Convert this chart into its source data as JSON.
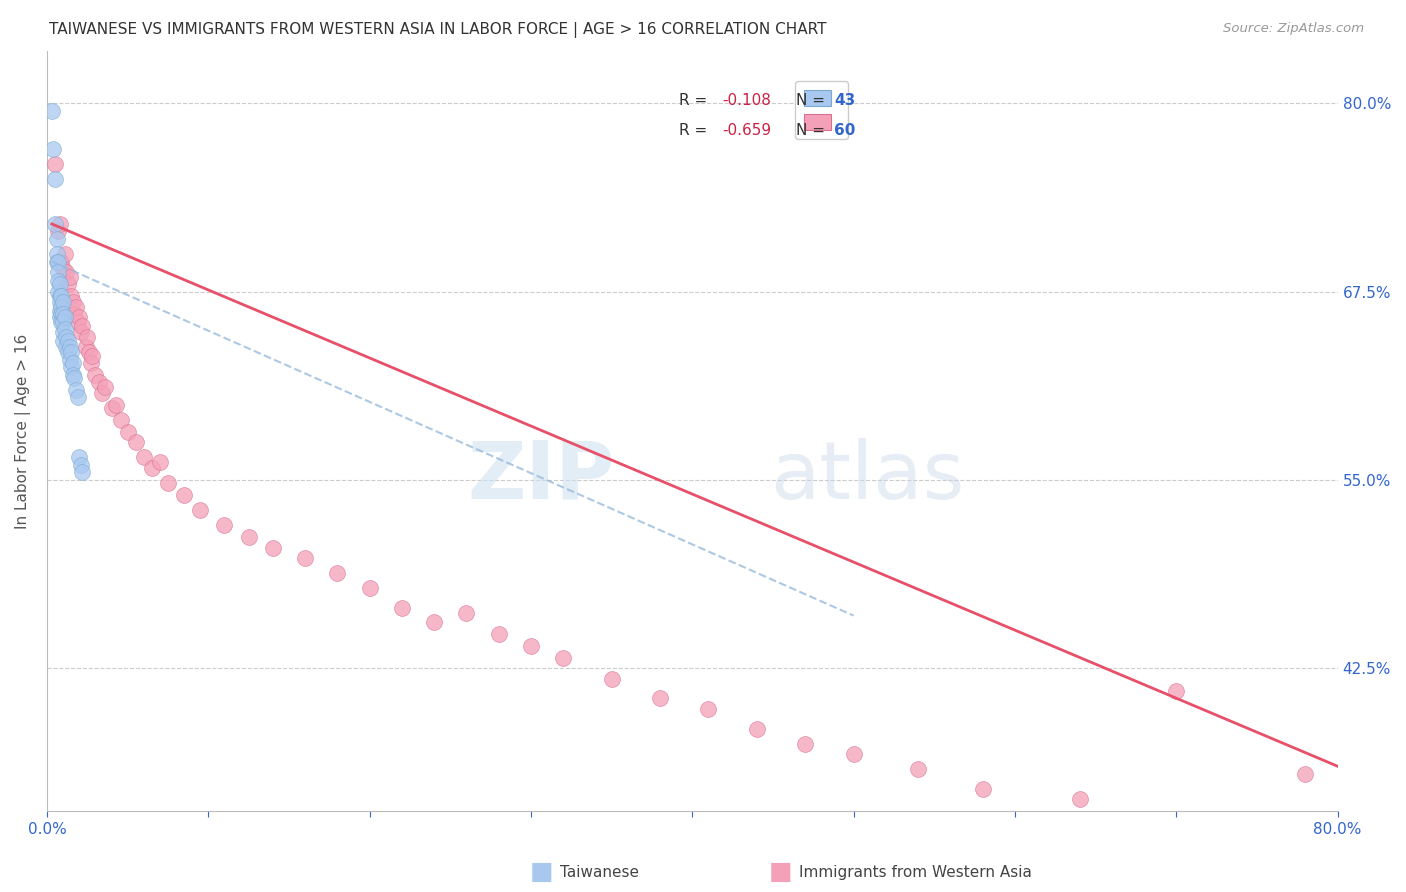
{
  "title": "TAIWANESE VS IMMIGRANTS FROM WESTERN ASIA IN LABOR FORCE | AGE > 16 CORRELATION CHART",
  "source": "Source: ZipAtlas.com",
  "ylabel": "In Labor Force | Age > 16",
  "xlim": [
    0.0,
    0.8
  ],
  "ylim": [
    0.33,
    0.835
  ],
  "ytick_positions": [
    0.425,
    0.55,
    0.675,
    0.8
  ],
  "ytick_labels": [
    "42.5%",
    "55.0%",
    "67.5%",
    "80.0%"
  ],
  "taiwanese_color": "#a8c8f0",
  "taiwanese_edge": "#7aaad0",
  "western_asia_color": "#f4a0b8",
  "western_asia_edge": "#d87090",
  "trend_blue_color": "#99bbdd",
  "trend_pink_color": "#e8506a",
  "tw_x": [
    0.003,
    0.004,
    0.005,
    0.005,
    0.006,
    0.006,
    0.006,
    0.007,
    0.007,
    0.007,
    0.007,
    0.008,
    0.008,
    0.008,
    0.008,
    0.008,
    0.009,
    0.009,
    0.009,
    0.009,
    0.01,
    0.01,
    0.01,
    0.01,
    0.01,
    0.011,
    0.011,
    0.012,
    0.012,
    0.013,
    0.013,
    0.014,
    0.014,
    0.015,
    0.015,
    0.016,
    0.016,
    0.017,
    0.018,
    0.019,
    0.02,
    0.021,
    0.022
  ],
  "tw_y": [
    0.795,
    0.77,
    0.75,
    0.72,
    0.71,
    0.7,
    0.695,
    0.695,
    0.688,
    0.682,
    0.675,
    0.68,
    0.672,
    0.668,
    0.662,
    0.658,
    0.672,
    0.665,
    0.66,
    0.655,
    0.668,
    0.66,
    0.655,
    0.648,
    0.642,
    0.658,
    0.65,
    0.645,
    0.638,
    0.642,
    0.635,
    0.638,
    0.63,
    0.635,
    0.625,
    0.628,
    0.62,
    0.618,
    0.61,
    0.605,
    0.565,
    0.56,
    0.555
  ],
  "wa_x": [
    0.005,
    0.007,
    0.008,
    0.009,
    0.01,
    0.011,
    0.012,
    0.013,
    0.014,
    0.015,
    0.016,
    0.017,
    0.018,
    0.019,
    0.02,
    0.021,
    0.022,
    0.024,
    0.025,
    0.026,
    0.027,
    0.028,
    0.03,
    0.032,
    0.034,
    0.036,
    0.04,
    0.043,
    0.046,
    0.05,
    0.055,
    0.06,
    0.065,
    0.07,
    0.075,
    0.085,
    0.095,
    0.11,
    0.125,
    0.14,
    0.16,
    0.18,
    0.2,
    0.22,
    0.24,
    0.26,
    0.28,
    0.3,
    0.32,
    0.35,
    0.38,
    0.41,
    0.44,
    0.47,
    0.5,
    0.54,
    0.58,
    0.64,
    0.7,
    0.78
  ],
  "wa_y": [
    0.76,
    0.715,
    0.72,
    0.695,
    0.69,
    0.7,
    0.688,
    0.68,
    0.685,
    0.672,
    0.668,
    0.66,
    0.665,
    0.655,
    0.658,
    0.648,
    0.652,
    0.638,
    0.645,
    0.635,
    0.628,
    0.632,
    0.62,
    0.615,
    0.608,
    0.612,
    0.598,
    0.6,
    0.59,
    0.582,
    0.575,
    0.565,
    0.558,
    0.562,
    0.548,
    0.54,
    0.53,
    0.52,
    0.512,
    0.505,
    0.498,
    0.488,
    0.478,
    0.465,
    0.456,
    0.462,
    0.448,
    0.44,
    0.432,
    0.418,
    0.405,
    0.398,
    0.385,
    0.375,
    0.368,
    0.358,
    0.345,
    0.338,
    0.41,
    0.355
  ],
  "tw_trend_x0": 0.003,
  "tw_trend_x1": 0.5,
  "tw_trend_y0": 0.695,
  "tw_trend_y1": 0.46,
  "wa_trend_x0": 0.003,
  "wa_trend_x1": 0.8,
  "wa_trend_y0": 0.72,
  "wa_trend_y1": 0.36,
  "watermark_zip": "ZIP",
  "watermark_atlas": "atlas"
}
